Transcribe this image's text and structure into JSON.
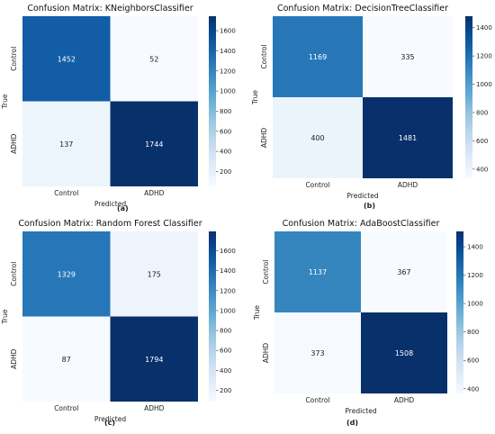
{
  "chart_data": [
    {
      "type": "heatmap",
      "title": "Confusion Matrix: KNeighborsClassifier",
      "xlabel": "Predicted",
      "ylabel": "True",
      "x_categories": [
        "Control",
        "ADHD"
      ],
      "y_categories": [
        "Control",
        "ADHD"
      ],
      "values": [
        [
          1452,
          52
        ],
        [
          137,
          1744
        ]
      ],
      "colorbar": {
        "min": 52,
        "max": 1744,
        "ticks": [
          200,
          400,
          600,
          800,
          1000,
          1200,
          1400,
          1600
        ]
      },
      "colormap": "Blues",
      "caption": "(a)"
    },
    {
      "type": "heatmap",
      "title": "Confusion Matrix: DecisionTreeClassifier",
      "xlabel": "Predicted",
      "ylabel": "True",
      "x_categories": [
        "Control",
        "ADHD"
      ],
      "y_categories": [
        "Control",
        "ADHD"
      ],
      "values": [
        [
          1169,
          335
        ],
        [
          400,
          1481
        ]
      ],
      "colorbar": {
        "min": 335,
        "max": 1481,
        "ticks": [
          400,
          600,
          800,
          1000,
          1200,
          1400
        ]
      },
      "colormap": "Blues",
      "caption": "(b)"
    },
    {
      "type": "heatmap",
      "title": "Confusion Matrix: Random Forest Classifier",
      "xlabel": "Predicted",
      "ylabel": "True",
      "x_categories": [
        "Control",
        "ADHD"
      ],
      "y_categories": [
        "Control",
        "ADHD"
      ],
      "values": [
        [
          1329,
          175
        ],
        [
          87,
          1794
        ]
      ],
      "colorbar": {
        "min": 87,
        "max": 1794,
        "ticks": [
          200,
          400,
          600,
          800,
          1000,
          1200,
          1400,
          1600
        ]
      },
      "colormap": "Blues",
      "caption": "(c)"
    },
    {
      "type": "heatmap",
      "title": "Confusion Matrix: AdaBoostClassifier",
      "xlabel": "Predicted",
      "ylabel": "True",
      "x_categories": [
        "Control",
        "ADHD"
      ],
      "y_categories": [
        "Control",
        "ADHD"
      ],
      "values": [
        [
          1137,
          367
        ],
        [
          373,
          1508
        ]
      ],
      "colorbar": {
        "min": 367,
        "max": 1508,
        "ticks": [
          400,
          600,
          800,
          1000,
          1200,
          1400
        ]
      },
      "colormap": "Blues",
      "caption": "(d)"
    }
  ]
}
